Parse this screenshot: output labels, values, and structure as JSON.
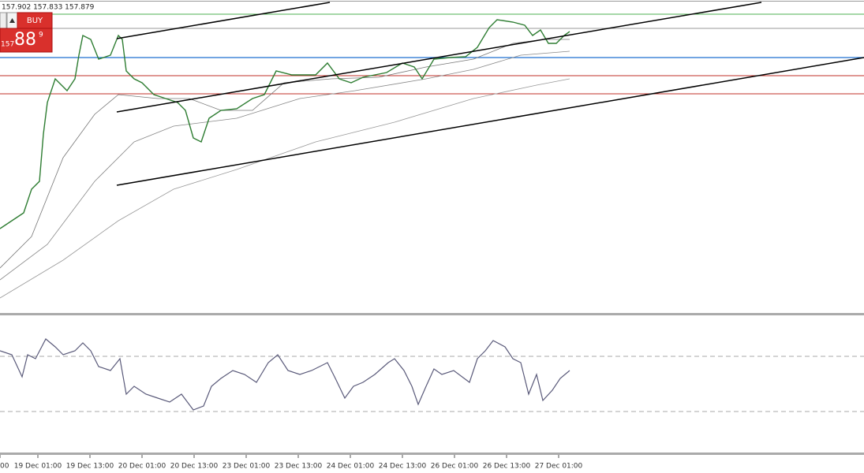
{
  "header": {
    "ohlc": "157.902 157.833 157.879"
  },
  "trade_panel": {
    "buy": "BUY",
    "price_prefix": "157",
    "price_big": "88",
    "price_pip": "9"
  },
  "time_axis": {
    "labels": [
      "00",
      "19 Dec 01:00",
      "19 Dec 13:00",
      "20 Dec 01:00",
      "20 Dec 13:00",
      "23 Dec 01:00",
      "23 Dec 13:00",
      "24 Dec 01:00",
      "24 Dec 13:00",
      "26 Dec 01:00",
      "26 Dec 13:00",
      "27 Dec 01:00"
    ]
  }
}
